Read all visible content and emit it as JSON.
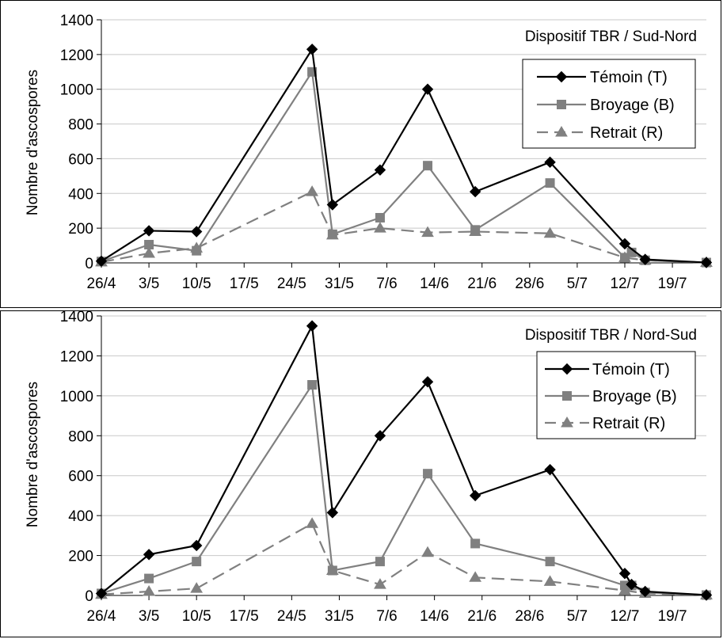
{
  "chart_data": [
    {
      "type": "line",
      "title": "Dispositif TBR / Sud-Nord",
      "xlabel": "",
      "ylabel": "Nombre d'ascospores",
      "xlim": [
        0,
        89
      ],
      "ylim": [
        0,
        1400
      ],
      "yticks": [
        0,
        200,
        400,
        600,
        800,
        1000,
        1200,
        1400
      ],
      "xtick_labels": [
        "26/4",
        "3/5",
        "10/5",
        "17/5",
        "24/5",
        "31/5",
        "7/6",
        "14/6",
        "21/6",
        "28/6",
        "5/7",
        "12/7",
        "19/7"
      ],
      "grid": "horizontal",
      "legend_position": "top-right",
      "series": [
        {
          "name": "Témoin (T)",
          "color": "#000000",
          "marker": "diamond",
          "dash": "solid",
          "x": [
            0,
            7,
            14,
            31,
            34,
            41,
            48,
            55,
            66,
            77,
            80,
            89
          ],
          "y": [
            10,
            185,
            180,
            1230,
            335,
            535,
            1000,
            410,
            580,
            110,
            20,
            2
          ]
        },
        {
          "name": "Broyage (B)",
          "color": "#808080",
          "marker": "square",
          "dash": "solid",
          "x": [
            0,
            7,
            14,
            31,
            34,
            41,
            48,
            55,
            66,
            77,
            78,
            80,
            89
          ],
          "y": [
            8,
            105,
            70,
            1100,
            165,
            260,
            560,
            190,
            460,
            30,
            60,
            15,
            2
          ]
        },
        {
          "name": "Retrait (R)",
          "color": "#808080",
          "marker": "triangle",
          "dash": "dashed",
          "x": [
            0,
            7,
            14,
            31,
            34,
            41,
            48,
            55,
            66,
            77,
            80,
            89
          ],
          "y": [
            5,
            55,
            85,
            410,
            160,
            200,
            175,
            180,
            170,
            30,
            15,
            2
          ]
        }
      ]
    },
    {
      "type": "line",
      "title": "Dispositif TBR / Nord-Sud",
      "xlabel": "",
      "ylabel": "Nombre d'ascospores",
      "xlim": [
        0,
        89
      ],
      "ylim": [
        0,
        1400
      ],
      "yticks": [
        0,
        200,
        400,
        600,
        800,
        1000,
        1200,
        1400
      ],
      "xtick_labels": [
        "26/4",
        "3/5",
        "10/5",
        "17/5",
        "24/5",
        "31/5",
        "7/6",
        "14/6",
        "21/6",
        "28/6",
        "5/7",
        "12/7",
        "19/7"
      ],
      "grid": "horizontal",
      "legend_position": "top-right",
      "series": [
        {
          "name": "Témoin (T)",
          "color": "#000000",
          "marker": "diamond",
          "dash": "solid",
          "x": [
            0,
            7,
            14,
            31,
            34,
            41,
            48,
            55,
            66,
            77,
            78,
            80,
            89
          ],
          "y": [
            10,
            205,
            250,
            1350,
            415,
            800,
            1070,
            500,
            630,
            110,
            55,
            20,
            2
          ]
        },
        {
          "name": "Broyage (B)",
          "color": "#808080",
          "marker": "square",
          "dash": "solid",
          "x": [
            0,
            7,
            14,
            31,
            34,
            41,
            48,
            55,
            66,
            77,
            78,
            80,
            89
          ],
          "y": [
            10,
            85,
            170,
            1055,
            125,
            170,
            610,
            260,
            170,
            50,
            50,
            15,
            2
          ]
        },
        {
          "name": "Retrait (R)",
          "color": "#808080",
          "marker": "triangle",
          "dash": "dashed",
          "x": [
            0,
            7,
            14,
            31,
            34,
            41,
            48,
            55,
            66,
            77,
            80,
            89
          ],
          "y": [
            5,
            20,
            35,
            360,
            125,
            55,
            215,
            90,
            70,
            25,
            10,
            2
          ]
        }
      ]
    }
  ]
}
